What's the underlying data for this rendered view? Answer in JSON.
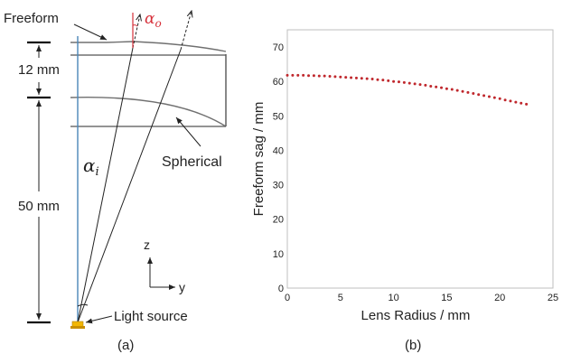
{
  "panel_a": {
    "freeform_label": "Freeform",
    "alpha_o_label": "α",
    "alpha_o_sub": "o",
    "dim_top": "12 mm",
    "dim_bottom": "50 mm",
    "alpha_i_label": "α",
    "alpha_i_sub": "i",
    "spherical_label": "Spherical",
    "axis_z": "z",
    "axis_y": "y",
    "light_source_label": "Light source",
    "caption": "(a)",
    "colors": {
      "accent": "#d6303a",
      "axis_line": "#4a86b8",
      "lens": "#707070",
      "source": "#f2b705"
    }
  },
  "panel_b": {
    "caption": "(b)",
    "chart_data": {
      "type": "scatter",
      "xlabel": "Lens Radius / mm",
      "ylabel": "Freeform sag / mm",
      "xlim": [
        0,
        25
      ],
      "ylim": [
        0,
        75
      ],
      "xticks": [
        "0",
        "5",
        "10",
        "15",
        "20",
        "25"
      ],
      "yticks": [
        "0",
        "10",
        "20",
        "30",
        "40",
        "50",
        "60",
        "70"
      ],
      "grid": false,
      "marker_color": "#c0282d",
      "series": [
        {
          "x": [
            0,
            0.5,
            1,
            1.5,
            2,
            2.5,
            3,
            3.5,
            4,
            4.5,
            5,
            5.5,
            6,
            6.5,
            7,
            7.5,
            8,
            8.5,
            9,
            9.5,
            10,
            10.5,
            11,
            11.5,
            12,
            12.5,
            13,
            13.5,
            14,
            14.5,
            15,
            15.5,
            16,
            16.5,
            17,
            17.5,
            18,
            18.5,
            19,
            19.5,
            20,
            20.5,
            21,
            21.5,
            22,
            22.5
          ],
          "y": [
            61.8,
            61.8,
            61.8,
            61.8,
            61.7,
            61.7,
            61.6,
            61.6,
            61.5,
            61.4,
            61.3,
            61.2,
            61.1,
            61.0,
            60.9,
            60.8,
            60.7,
            60.5,
            60.4,
            60.2,
            60.0,
            59.9,
            59.7,
            59.5,
            59.3,
            59.1,
            58.9,
            58.6,
            58.4,
            58.2,
            57.9,
            57.7,
            57.4,
            57.1,
            56.8,
            56.5,
            56.2,
            55.9,
            55.6,
            55.3,
            55.0,
            54.6,
            54.3,
            54.0,
            53.7,
            53.4
          ]
        }
      ]
    }
  }
}
